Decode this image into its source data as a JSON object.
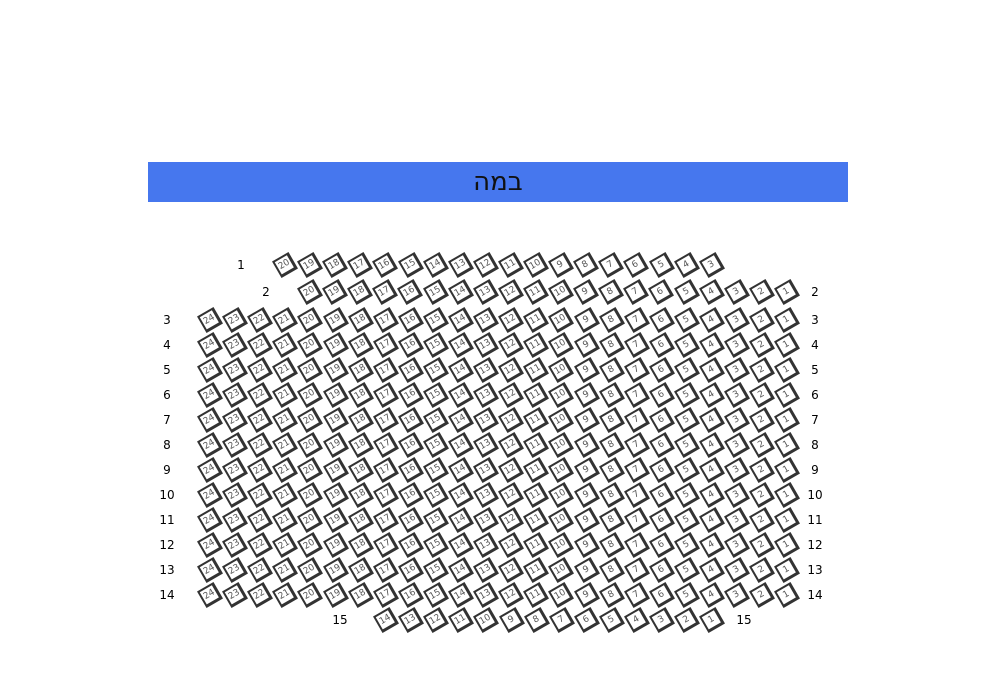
{
  "stage": {
    "label": "במה",
    "color": "#4677ee"
  },
  "rows": [
    {
      "label": "1",
      "seats": [
        20,
        19,
        18,
        17,
        16,
        15,
        14,
        13,
        12,
        11,
        10,
        9,
        8,
        7,
        6,
        5,
        4,
        3
      ]
    },
    {
      "label": "2",
      "seats": [
        20,
        19,
        18,
        17,
        16,
        15,
        14,
        13,
        12,
        11,
        10,
        9,
        8,
        7,
        6,
        5,
        4,
        3,
        2,
        1
      ]
    },
    {
      "label": "3",
      "seats": [
        24,
        23,
        22,
        21,
        20,
        19,
        18,
        17,
        16,
        15,
        14,
        13,
        12,
        11,
        10,
        9,
        8,
        7,
        6,
        5,
        4,
        3,
        2,
        1
      ]
    },
    {
      "label": "4",
      "seats": [
        24,
        23,
        22,
        21,
        20,
        19,
        18,
        17,
        16,
        15,
        14,
        13,
        12,
        11,
        10,
        9,
        8,
        7,
        6,
        5,
        4,
        3,
        2,
        1
      ]
    },
    {
      "label": "5",
      "seats": [
        24,
        23,
        22,
        21,
        20,
        19,
        18,
        17,
        16,
        15,
        14,
        13,
        12,
        11,
        10,
        9,
        8,
        7,
        6,
        5,
        4,
        3,
        2,
        1
      ]
    },
    {
      "label": "6",
      "seats": [
        24,
        23,
        22,
        21,
        20,
        19,
        18,
        17,
        16,
        15,
        14,
        13,
        12,
        11,
        10,
        9,
        8,
        7,
        6,
        5,
        4,
        3,
        2,
        1
      ]
    },
    {
      "label": "7",
      "seats": [
        24,
        23,
        22,
        21,
        20,
        19,
        18,
        17,
        16,
        15,
        14,
        13,
        12,
        11,
        10,
        9,
        8,
        7,
        6,
        5,
        4,
        3,
        2,
        1
      ]
    },
    {
      "label": "8",
      "seats": [
        24,
        23,
        22,
        21,
        20,
        19,
        18,
        17,
        16,
        15,
        14,
        13,
        12,
        11,
        10,
        9,
        8,
        7,
        6,
        5,
        4,
        3,
        2,
        1
      ]
    },
    {
      "label": "9",
      "seats": [
        24,
        23,
        22,
        21,
        20,
        19,
        18,
        17,
        16,
        15,
        14,
        13,
        12,
        11,
        10,
        9,
        8,
        7,
        6,
        5,
        4,
        3,
        2,
        1
      ]
    },
    {
      "label": "10",
      "seats": [
        24,
        23,
        22,
        21,
        20,
        19,
        18,
        17,
        16,
        15,
        14,
        13,
        12,
        11,
        10,
        9,
        8,
        7,
        6,
        5,
        4,
        3,
        2,
        1
      ]
    },
    {
      "label": "11",
      "seats": [
        24,
        23,
        22,
        21,
        20,
        19,
        18,
        17,
        16,
        15,
        14,
        13,
        12,
        11,
        10,
        9,
        8,
        7,
        6,
        5,
        4,
        3,
        2,
        1
      ]
    },
    {
      "label": "12",
      "seats": [
        24,
        23,
        22,
        21,
        20,
        19,
        18,
        17,
        16,
        15,
        14,
        13,
        12,
        11,
        10,
        9,
        8,
        7,
        6,
        5,
        4,
        3,
        2,
        1
      ]
    },
    {
      "label": "13",
      "seats": [
        24,
        23,
        22,
        21,
        20,
        19,
        18,
        17,
        16,
        15,
        14,
        13,
        12,
        11,
        10,
        9,
        8,
        7,
        6,
        5,
        4,
        3,
        2,
        1
      ]
    },
    {
      "label": "14",
      "seats": [
        24,
        23,
        22,
        21,
        20,
        19,
        18,
        17,
        16,
        15,
        14,
        13,
        12,
        11,
        10,
        9,
        8,
        7,
        6,
        5,
        4,
        3,
        2,
        1
      ]
    },
    {
      "label": "15",
      "seats": [
        14,
        13,
        12,
        11,
        10,
        9,
        8,
        7,
        6,
        5,
        4,
        3,
        2,
        1
      ]
    }
  ]
}
